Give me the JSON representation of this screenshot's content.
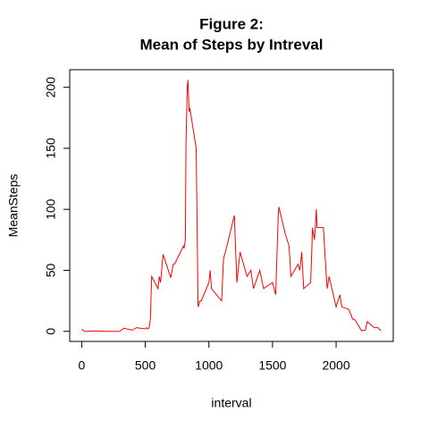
{
  "chart_data": {
    "type": "line",
    "title": [
      "Figure 2:",
      "Mean of Steps by Intreval"
    ],
    "xlabel": "interval",
    "ylabel": "MeanSteps",
    "color": "#ff0000",
    "x": [
      0,
      20,
      40,
      100,
      200,
      300,
      330,
      400,
      430,
      500,
      510,
      520,
      530,
      540,
      550,
      600,
      610,
      620,
      640,
      700,
      720,
      730,
      800,
      805,
      815,
      820,
      830,
      835,
      845,
      850,
      900,
      915,
      930,
      940,
      1000,
      1010,
      1020,
      1100,
      1115,
      1130,
      1200,
      1220,
      1245,
      1300,
      1330,
      1350,
      1400,
      1430,
      1500,
      1525,
      1545,
      1550,
      1600,
      1630,
      1645,
      1700,
      1715,
      1730,
      1745,
      1800,
      1815,
      1830,
      1845,
      1850,
      1900,
      1920,
      1930,
      1945,
      2000,
      2015,
      2030,
      2045,
      2100,
      2130,
      2145,
      2200,
      2230,
      2245,
      2300,
      2330,
      2345,
      2355
    ],
    "values": [
      1.7,
      0.1,
      0,
      0.4,
      0,
      0,
      2.5,
      1,
      3,
      2,
      3,
      2,
      3,
      10,
      45,
      35,
      45,
      40,
      63,
      44,
      55,
      55,
      70,
      68,
      75,
      155,
      200,
      206,
      180,
      183,
      150,
      20,
      25,
      25,
      40,
      50,
      35,
      25,
      60,
      65,
      95,
      40,
      65,
      45,
      50,
      35,
      50,
      35,
      40,
      30,
      95,
      102,
      80,
      70,
      45,
      55,
      50,
      65,
      35,
      40,
      85,
      75,
      100,
      85,
      85,
      50,
      35,
      45,
      20,
      25,
      30,
      20,
      18,
      10,
      10,
      0.5,
      1,
      8,
      3,
      3,
      1,
      1.1
    ],
    "xlim": [
      -94.2,
      2449.2
    ],
    "ylim": [
      -8.25,
      214.4
    ],
    "xticks": [
      0,
      500,
      1000,
      1500,
      2000
    ],
    "yticks": [
      0,
      50,
      100,
      150,
      200
    ]
  }
}
